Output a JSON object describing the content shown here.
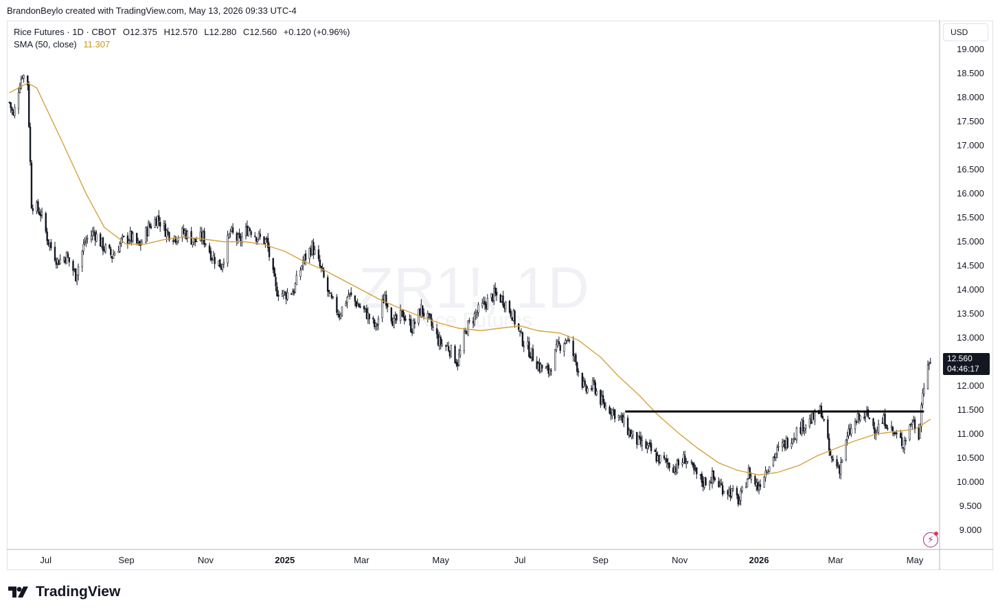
{
  "header": {
    "credit": "BrandonBeylo created with TradingView.com, May 13, 2026 09:33 UTC-4"
  },
  "legend": {
    "symbol": "Rice Futures · 1D · CBOT",
    "open_label": "O",
    "open": "12.375",
    "high_label": "H",
    "high": "12.570",
    "low_label": "L",
    "low": "12.280",
    "close_label": "C",
    "close": "12.560",
    "change": "+0.120 (+0.96%)",
    "sma_label": "SMA (50, close)",
    "sma_value": "11.307"
  },
  "currency": "USD",
  "price_tag": {
    "price": "12.560",
    "countdown": "04:46:17"
  },
  "watermark": {
    "ticker": "ZR1!, 1D",
    "name": "Rice Futures"
  },
  "brand": "TradingView",
  "colors": {
    "candle": "#131722",
    "sma": "#d4a13a",
    "background": "#ffffff",
    "tag_bg": "#131722"
  },
  "chart_data": {
    "type": "line",
    "series_style": "candlestick",
    "ylim": [
      8.6,
      19.6
    ],
    "y_ticks": [
      9.0,
      9.5,
      10.0,
      10.5,
      11.0,
      11.5,
      12.0,
      12.5,
      13.0,
      13.5,
      14.0,
      14.5,
      15.0,
      15.5,
      16.0,
      16.5,
      17.0,
      17.5,
      18.0,
      18.5,
      19.0
    ],
    "y_tick_labels": [
      "9.000",
      "9.500",
      "10.000",
      "10.500",
      "11.000",
      "11.500",
      "12.000",
      "12.500",
      "13.000",
      "13.500",
      "14.000",
      "14.500",
      "15.000",
      "15.500",
      "16.000",
      "16.500",
      "17.000",
      "17.500",
      "18.000",
      "18.500",
      "19.000"
    ],
    "x_ticks": [
      {
        "label": "Jul",
        "date": "2024-07-01",
        "bold": false
      },
      {
        "label": "Sep",
        "date": "2024-09-01",
        "bold": false
      },
      {
        "label": "Nov",
        "date": "2024-11-01",
        "bold": false
      },
      {
        "label": "2025",
        "date": "2025-01-01",
        "bold": true
      },
      {
        "label": "Mar",
        "date": "2025-03-01",
        "bold": false
      },
      {
        "label": "May",
        "date": "2025-05-01",
        "bold": false
      },
      {
        "label": "Jul",
        "date": "2025-07-01",
        "bold": false
      },
      {
        "label": "Sep",
        "date": "2025-09-01",
        "bold": false
      },
      {
        "label": "Nov",
        "date": "2025-11-01",
        "bold": false
      },
      {
        "label": "2026",
        "date": "2026-01-01",
        "bold": true
      },
      {
        "label": "Mar",
        "date": "2026-03-01",
        "bold": false
      },
      {
        "label": "May",
        "date": "2026-05-01",
        "bold": false
      }
    ],
    "price_path": [
      [
        "2024-06-03",
        17.9
      ],
      [
        "2024-06-06",
        17.6
      ],
      [
        "2024-06-10",
        18.2
      ],
      [
        "2024-06-13",
        18.5
      ],
      [
        "2024-06-17",
        18.3
      ],
      [
        "2024-06-20",
        15.8
      ],
      [
        "2024-06-27",
        15.6
      ],
      [
        "2024-07-03",
        15.0
      ],
      [
        "2024-07-10",
        14.6
      ],
      [
        "2024-07-17",
        14.7
      ],
      [
        "2024-07-24",
        14.3
      ],
      [
        "2024-07-31",
        15.0
      ],
      [
        "2024-08-07",
        15.2
      ],
      [
        "2024-08-14",
        14.9
      ],
      [
        "2024-08-21",
        14.7
      ],
      [
        "2024-08-28",
        15.0
      ],
      [
        "2024-09-04",
        15.1
      ],
      [
        "2024-09-11",
        14.9
      ],
      [
        "2024-09-18",
        15.3
      ],
      [
        "2024-09-25",
        15.5
      ],
      [
        "2024-10-02",
        15.2
      ],
      [
        "2024-10-09",
        15.1
      ],
      [
        "2024-10-16",
        15.2
      ],
      [
        "2024-10-23",
        15.0
      ],
      [
        "2024-10-30",
        15.1
      ],
      [
        "2024-11-06",
        14.7
      ],
      [
        "2024-11-13",
        14.5
      ],
      [
        "2024-11-20",
        15.2
      ],
      [
        "2024-11-27",
        15.0
      ],
      [
        "2024-12-04",
        15.3
      ],
      [
        "2024-12-11",
        15.1
      ],
      [
        "2024-12-18",
        15.0
      ],
      [
        "2024-12-25",
        14.0
      ],
      [
        "2025-01-01",
        13.9
      ],
      [
        "2025-01-08",
        14.0
      ],
      [
        "2025-01-15",
        14.6
      ],
      [
        "2025-01-22",
        14.9
      ],
      [
        "2025-01-29",
        14.4
      ],
      [
        "2025-02-05",
        13.8
      ],
      [
        "2025-02-12",
        13.5
      ],
      [
        "2025-02-19",
        13.9
      ],
      [
        "2025-02-26",
        13.7
      ],
      [
        "2025-03-05",
        13.5
      ],
      [
        "2025-03-12",
        13.2
      ],
      [
        "2025-03-19",
        13.9
      ],
      [
        "2025-03-26",
        13.3
      ],
      [
        "2025-04-02",
        13.5
      ],
      [
        "2025-04-09",
        13.2
      ],
      [
        "2025-04-16",
        13.6
      ],
      [
        "2025-04-23",
        13.3
      ],
      [
        "2025-04-30",
        12.9
      ],
      [
        "2025-05-07",
        12.8
      ],
      [
        "2025-05-14",
        12.5
      ],
      [
        "2025-05-21",
        13.2
      ],
      [
        "2025-05-28",
        13.5
      ],
      [
        "2025-06-04",
        13.7
      ],
      [
        "2025-06-11",
        13.9
      ],
      [
        "2025-06-18",
        13.8
      ],
      [
        "2025-06-25",
        13.5
      ],
      [
        "2025-07-02",
        13.0
      ],
      [
        "2025-07-09",
        12.7
      ],
      [
        "2025-07-16",
        12.4
      ],
      [
        "2025-07-23",
        12.3
      ],
      [
        "2025-07-30",
        12.8
      ],
      [
        "2025-08-06",
        13.0
      ],
      [
        "2025-08-13",
        12.5
      ],
      [
        "2025-08-20",
        11.9
      ],
      [
        "2025-08-27",
        12.0
      ],
      [
        "2025-09-03",
        11.6
      ],
      [
        "2025-09-10",
        11.5
      ],
      [
        "2025-09-17",
        11.3
      ],
      [
        "2025-09-24",
        11.0
      ],
      [
        "2025-10-01",
        10.8
      ],
      [
        "2025-10-08",
        10.7
      ],
      [
        "2025-10-15",
        10.5
      ],
      [
        "2025-10-22",
        10.4
      ],
      [
        "2025-10-29",
        10.3
      ],
      [
        "2025-11-05",
        10.5
      ],
      [
        "2025-11-12",
        10.2
      ],
      [
        "2025-11-19",
        10.0
      ],
      [
        "2025-11-26",
        10.1
      ],
      [
        "2025-12-03",
        9.9
      ],
      [
        "2025-12-10",
        9.8
      ],
      [
        "2025-12-17",
        9.6
      ],
      [
        "2025-12-24",
        10.2
      ],
      [
        "2025-12-31",
        9.9
      ],
      [
        "2026-01-07",
        10.3
      ],
      [
        "2026-01-14",
        10.6
      ],
      [
        "2026-01-21",
        10.8
      ],
      [
        "2026-01-28",
        11.0
      ],
      [
        "2026-02-04",
        11.2
      ],
      [
        "2026-02-11",
        11.3
      ],
      [
        "2026-02-18",
        11.5
      ],
      [
        "2026-02-25",
        10.5
      ],
      [
        "2026-03-04",
        10.3
      ],
      [
        "2026-03-11",
        11.0
      ],
      [
        "2026-03-18",
        11.3
      ],
      [
        "2026-03-25",
        11.4
      ],
      [
        "2026-04-01",
        11.1
      ],
      [
        "2026-04-08",
        11.3
      ],
      [
        "2026-04-15",
        11.0
      ],
      [
        "2026-04-22",
        10.8
      ],
      [
        "2026-04-29",
        11.3
      ],
      [
        "2026-05-04",
        11.0
      ],
      [
        "2026-05-07",
        11.9
      ],
      [
        "2026-05-11",
        12.3
      ],
      [
        "2026-05-13",
        12.56
      ]
    ],
    "sma_path": [
      [
        "2024-06-03",
        18.1
      ],
      [
        "2024-06-10",
        18.2
      ],
      [
        "2024-06-17",
        18.3
      ],
      [
        "2024-06-24",
        18.2
      ],
      [
        "2024-07-01",
        17.8
      ],
      [
        "2024-07-15",
        17.0
      ],
      [
        "2024-08-01",
        16.0
      ],
      [
        "2024-08-15",
        15.3
      ],
      [
        "2024-09-01",
        14.95
      ],
      [
        "2024-09-15",
        14.95
      ],
      [
        "2024-10-01",
        15.05
      ],
      [
        "2024-10-15",
        15.1
      ],
      [
        "2024-11-01",
        15.05
      ],
      [
        "2024-11-15",
        15.0
      ],
      [
        "2024-12-01",
        15.0
      ],
      [
        "2024-12-15",
        14.95
      ],
      [
        "2025-01-01",
        14.8
      ],
      [
        "2025-01-15",
        14.6
      ],
      [
        "2025-02-01",
        14.4
      ],
      [
        "2025-02-15",
        14.2
      ],
      [
        "2025-03-01",
        14.0
      ],
      [
        "2025-03-15",
        13.8
      ],
      [
        "2025-04-01",
        13.6
      ],
      [
        "2025-04-15",
        13.45
      ],
      [
        "2025-05-01",
        13.3
      ],
      [
        "2025-05-15",
        13.2
      ],
      [
        "2025-06-01",
        13.15
      ],
      [
        "2025-06-15",
        13.2
      ],
      [
        "2025-07-01",
        13.25
      ],
      [
        "2025-07-15",
        13.15
      ],
      [
        "2025-08-01",
        13.1
      ],
      [
        "2025-08-15",
        12.95
      ],
      [
        "2025-09-01",
        12.6
      ],
      [
        "2025-09-15",
        12.2
      ],
      [
        "2025-10-01",
        11.8
      ],
      [
        "2025-10-15",
        11.4
      ],
      [
        "2025-11-01",
        11.0
      ],
      [
        "2025-11-15",
        10.7
      ],
      [
        "2025-12-01",
        10.4
      ],
      [
        "2025-12-15",
        10.25
      ],
      [
        "2026-01-01",
        10.15
      ],
      [
        "2026-01-15",
        10.2
      ],
      [
        "2026-02-01",
        10.35
      ],
      [
        "2026-02-15",
        10.55
      ],
      [
        "2026-03-01",
        10.7
      ],
      [
        "2026-03-15",
        10.85
      ],
      [
        "2026-04-01",
        11.0
      ],
      [
        "2026-04-15",
        11.05
      ],
      [
        "2026-05-01",
        11.1
      ],
      [
        "2026-05-13",
        11.307
      ]
    ],
    "horizontal_line": {
      "value": 11.47,
      "from": "2025-09-20",
      "to": "2026-05-08"
    }
  }
}
